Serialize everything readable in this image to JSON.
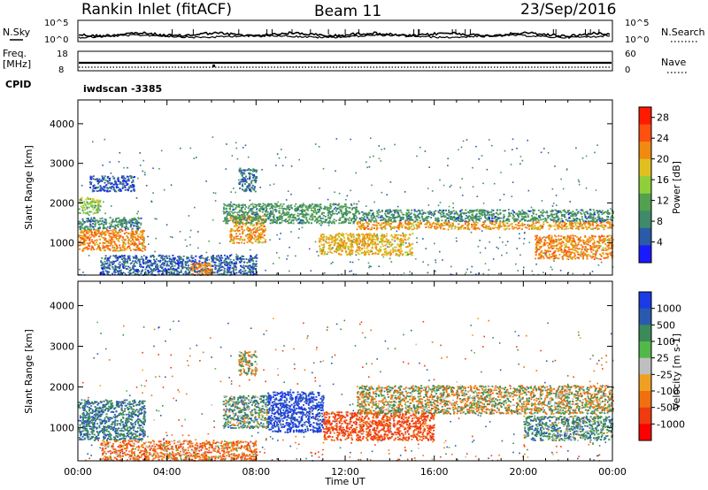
{
  "header": {
    "station": "Rankin Inlet (fitACF)",
    "beam": "Beam 11",
    "date": "23/Sep/2016"
  },
  "top_strips": {
    "nsky_label": "N.Sky",
    "nsearch_label": "N.Search",
    "nsky_ticks": [
      "10^5",
      "10^0"
    ],
    "nsky_right_ticks": [
      "10^5",
      "10^0"
    ],
    "freq_label": "Freq.",
    "freq_unit": "[MHz]",
    "freq_ticks": [
      "18",
      "8"
    ],
    "nave_label": "Nave",
    "nave_ticks": [
      "60",
      "0"
    ],
    "cpid_label": "CPID",
    "cpid_value": "iwdscan -3385"
  },
  "colors": {
    "power_scale": [
      "#1a1aff",
      "#2a5aa8",
      "#3e8a6a",
      "#52a050",
      "#8fcf3a",
      "#e0c020",
      "#f08a10",
      "#ff5010",
      "#ff1a00"
    ],
    "velocity_scale": [
      "#1a3ae6",
      "#2a5ab0",
      "#3a8a5a",
      "#52b84a",
      "#bfbfbf",
      "#f0a020",
      "#f07010",
      "#f03a10",
      "#ff0000"
    ]
  },
  "chart_data": [
    {
      "type": "heatmap",
      "panel": "power",
      "xlabel": "",
      "ylabel": "Slant Range [km]",
      "xlim": [
        0,
        24
      ],
      "ylim": [
        180,
        4600
      ],
      "yticks": [
        "1000",
        "2000",
        "3000",
        "4000"
      ],
      "colorbar_label": "Power [dB]",
      "colorbar_ticks": [
        "4",
        "8",
        "12",
        "16",
        "20",
        "24",
        "28"
      ],
      "colorbar_range": [
        0,
        30
      ],
      "features": [
        {
          "t0": 0.0,
          "t1": 3.0,
          "r0": 800,
          "r1": 1350,
          "level": 28
        },
        {
          "t0": 0.0,
          "t1": 2.8,
          "r0": 1350,
          "r1": 1650,
          "level": 12
        },
        {
          "t0": 0.0,
          "t1": 1.0,
          "r0": 1750,
          "r1": 2150,
          "level": 19
        },
        {
          "t0": 6.8,
          "t1": 8.4,
          "r0": 1000,
          "r1": 1700,
          "level": 27
        },
        {
          "t0": 6.5,
          "t1": 12.5,
          "r0": 1500,
          "r1": 2000,
          "level": 14
        },
        {
          "t0": 7.2,
          "t1": 8.0,
          "r0": 2300,
          "r1": 2900,
          "level": 10
        },
        {
          "t0": 10.8,
          "t1": 15.0,
          "r0": 700,
          "r1": 1250,
          "level": 25
        },
        {
          "t0": 12.5,
          "t1": 24.0,
          "r0": 1350,
          "r1": 1550,
          "level": 27
        },
        {
          "t0": 12.5,
          "t1": 24.0,
          "r0": 1550,
          "r1": 1850,
          "level": 12
        },
        {
          "t0": 20.5,
          "t1": 24.0,
          "r0": 600,
          "r1": 1200,
          "level": 28
        },
        {
          "t0": 1.0,
          "t1": 8.0,
          "r0": 200,
          "r1": 700,
          "level": 8
        },
        {
          "t0": 5.0,
          "t1": 6.0,
          "r0": 200,
          "r1": 500,
          "level": 28
        },
        {
          "t0": 0.5,
          "t1": 2.5,
          "r0": 2300,
          "r1": 2700,
          "level": 7
        }
      ]
    },
    {
      "type": "heatmap",
      "panel": "velocity",
      "xlabel": "Time UT",
      "ylabel": "Slant Range [km]",
      "xlim": [
        0,
        24
      ],
      "ylim": [
        180,
        4600
      ],
      "xticks": [
        "00:00",
        "04:00",
        "08:00",
        "12:00",
        "16:00",
        "20:00",
        "00:00"
      ],
      "yticks": [
        "1000",
        "2000",
        "3000",
        "4000"
      ],
      "colorbar_label": "Velocity [m s-1]",
      "colorbar_ticks": [
        "1000",
        "500",
        "100",
        "25",
        "-25",
        "-100",
        "-500",
        "-1000"
      ],
      "colorbar_range": [
        -1000,
        1000
      ],
      "features": [
        {
          "t0": 0.0,
          "t1": 3.0,
          "r0": 700,
          "r1": 1700,
          "level": 300
        },
        {
          "t0": 6.5,
          "t1": 8.5,
          "r0": 1000,
          "r1": 1800,
          "level": 150
        },
        {
          "t0": 8.5,
          "t1": 11.0,
          "r0": 900,
          "r1": 1900,
          "level": 800
        },
        {
          "t0": 11.0,
          "t1": 16.0,
          "r0": 700,
          "r1": 1400,
          "level": -400
        },
        {
          "t0": 12.5,
          "t1": 24.0,
          "r0": 1350,
          "r1": 2050,
          "level": 0
        },
        {
          "t0": 20.0,
          "t1": 24.0,
          "r0": 700,
          "r1": 1300,
          "level": 200
        },
        {
          "t0": 1.0,
          "t1": 8.0,
          "r0": 200,
          "r1": 700,
          "level": -200
        },
        {
          "t0": 7.2,
          "t1": 8.0,
          "r0": 2300,
          "r1": 2900,
          "level": 0
        }
      ]
    }
  ]
}
